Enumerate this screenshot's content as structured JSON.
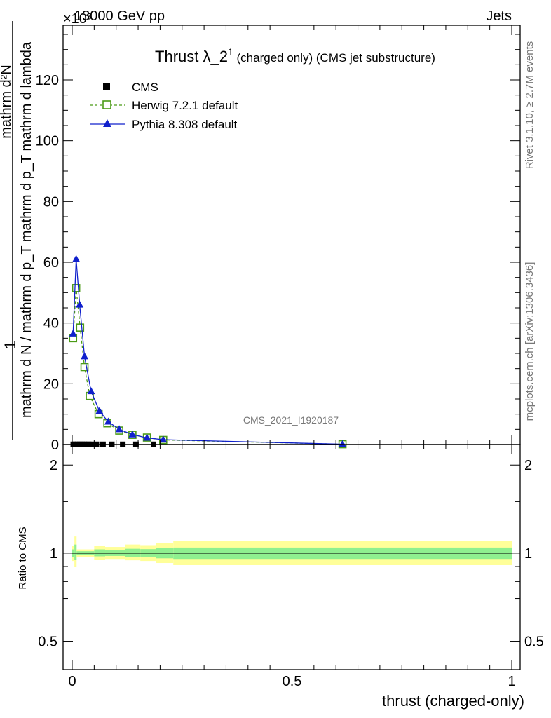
{
  "header": {
    "exponent": "×10³",
    "energy": "13000 GeV pp",
    "process": "Jets"
  },
  "side_labels": {
    "rivet": "Rivet 3.1.10, ≥ 2.7M events",
    "mcplots": "mcplots.cern.ch [arXiv:1306.3436]"
  },
  "watermark": "CMS_2021_I1920187",
  "chart_data": [
    {
      "type": "line",
      "title": "Thrust λ_2",
      "title_sup": "1",
      "title_suffix": " (charged only) (CMS jet substructure)",
      "ylabel_numerator": "mathrm d²N",
      "ylabel_denominator": "mathrm d N / mathrm d p_T mathrm d p_T mathrm d lambda",
      "ylabel_one": "1",
      "xlim": [
        0,
        1
      ],
      "ylim": [
        0,
        138
      ],
      "y_scale_factor": 1000,
      "yticks": [
        0,
        20,
        40,
        60,
        80,
        100,
        120
      ],
      "ytick_labels": [
        "0",
        "20",
        "40",
        "60",
        "80",
        "100",
        "120"
      ],
      "grid": false,
      "legend_position": "top-left",
      "series": [
        {
          "name": "CMS",
          "style": "markers",
          "color": "#000000",
          "marker": "square-filled",
          "x": [
            0.0025,
            0.0075,
            0.0125,
            0.0175,
            0.0225,
            0.0275,
            0.0325,
            0.0375,
            0.045,
            0.055,
            0.07,
            0.09,
            0.115,
            0.145,
            0.185,
            0.615
          ],
          "y": [
            0.05,
            0.05,
            0.05,
            0.05,
            0.05,
            0.05,
            0.05,
            0.05,
            0.05,
            0.05,
            0.05,
            0.05,
            0.05,
            0.05,
            0.05,
            0.05
          ]
        },
        {
          "name": "Herwig 7.2.1 default",
          "style": "dashed",
          "color": "#4b9b16",
          "marker": "square-open",
          "x": [
            0.002,
            0.009,
            0.018,
            0.028,
            0.04,
            0.06,
            0.08,
            0.107,
            0.137,
            0.17,
            0.207,
            0.615
          ],
          "y": [
            35,
            51.5,
            38.5,
            25.5,
            16,
            10,
            7,
            4.6,
            3.2,
            2.3,
            1.5,
            0.1
          ]
        },
        {
          "name": "Pythia 8.308 default",
          "style": "solid",
          "color": "#1020cc",
          "marker": "triangle-filled",
          "x": [
            0.002,
            0.009,
            0.017,
            0.028,
            0.043,
            0.062,
            0.082,
            0.107,
            0.137,
            0.17,
            0.207,
            0.615
          ],
          "y": [
            36.5,
            61,
            46,
            29,
            17.5,
            11,
            7.5,
            5,
            3.3,
            2.2,
            1.6,
            0.1
          ]
        }
      ]
    },
    {
      "type": "area",
      "ylabel": "Ratio to CMS",
      "xlabel": "thrust (charged-only)",
      "xlim": [
        0,
        1
      ],
      "ylim": [
        0.4,
        2.35
      ],
      "y_scale": "log",
      "yticks": [
        0.5,
        1,
        2
      ],
      "ytick_labels": [
        "0.5",
        "1",
        "2"
      ],
      "xticks": [
        0,
        0.5,
        1
      ],
      "xtick_labels": [
        "0",
        "0.5",
        "1"
      ],
      "bands": {
        "yellow_color": "#ffff99",
        "green_color": "#8ff08f",
        "bins": [
          {
            "x0": 0.0,
            "x1": 0.005,
            "y_lo": 0.94,
            "y_hi": 1.06,
            "g_lo": 0.97,
            "g_hi": 1.03
          },
          {
            "x0": 0.005,
            "x1": 0.01,
            "y_lo": 0.9,
            "y_hi": 1.14,
            "g_lo": 0.95,
            "g_hi": 1.07
          },
          {
            "x0": 0.01,
            "x1": 0.05,
            "y_lo": 0.97,
            "y_hi": 1.03,
            "g_lo": 0.985,
            "g_hi": 1.015
          },
          {
            "x0": 0.05,
            "x1": 0.075,
            "y_lo": 0.95,
            "y_hi": 1.06,
            "g_lo": 0.975,
            "g_hi": 1.03
          },
          {
            "x0": 0.075,
            "x1": 0.12,
            "y_lo": 0.955,
            "y_hi": 1.05,
            "g_lo": 0.978,
            "g_hi": 1.025
          },
          {
            "x0": 0.12,
            "x1": 0.155,
            "y_lo": 0.945,
            "y_hi": 1.07,
            "g_lo": 0.97,
            "g_hi": 1.035
          },
          {
            "x0": 0.155,
            "x1": 0.19,
            "y_lo": 0.94,
            "y_hi": 1.065,
            "g_lo": 0.97,
            "g_hi": 1.032
          },
          {
            "x0": 0.19,
            "x1": 0.23,
            "y_lo": 0.925,
            "y_hi": 1.08,
            "g_lo": 0.96,
            "g_hi": 1.04
          },
          {
            "x0": 0.23,
            "x1": 1.0,
            "y_lo": 0.91,
            "y_hi": 1.1,
            "g_lo": 0.955,
            "g_hi": 1.045
          }
        ]
      },
      "reference_line": 1
    }
  ]
}
